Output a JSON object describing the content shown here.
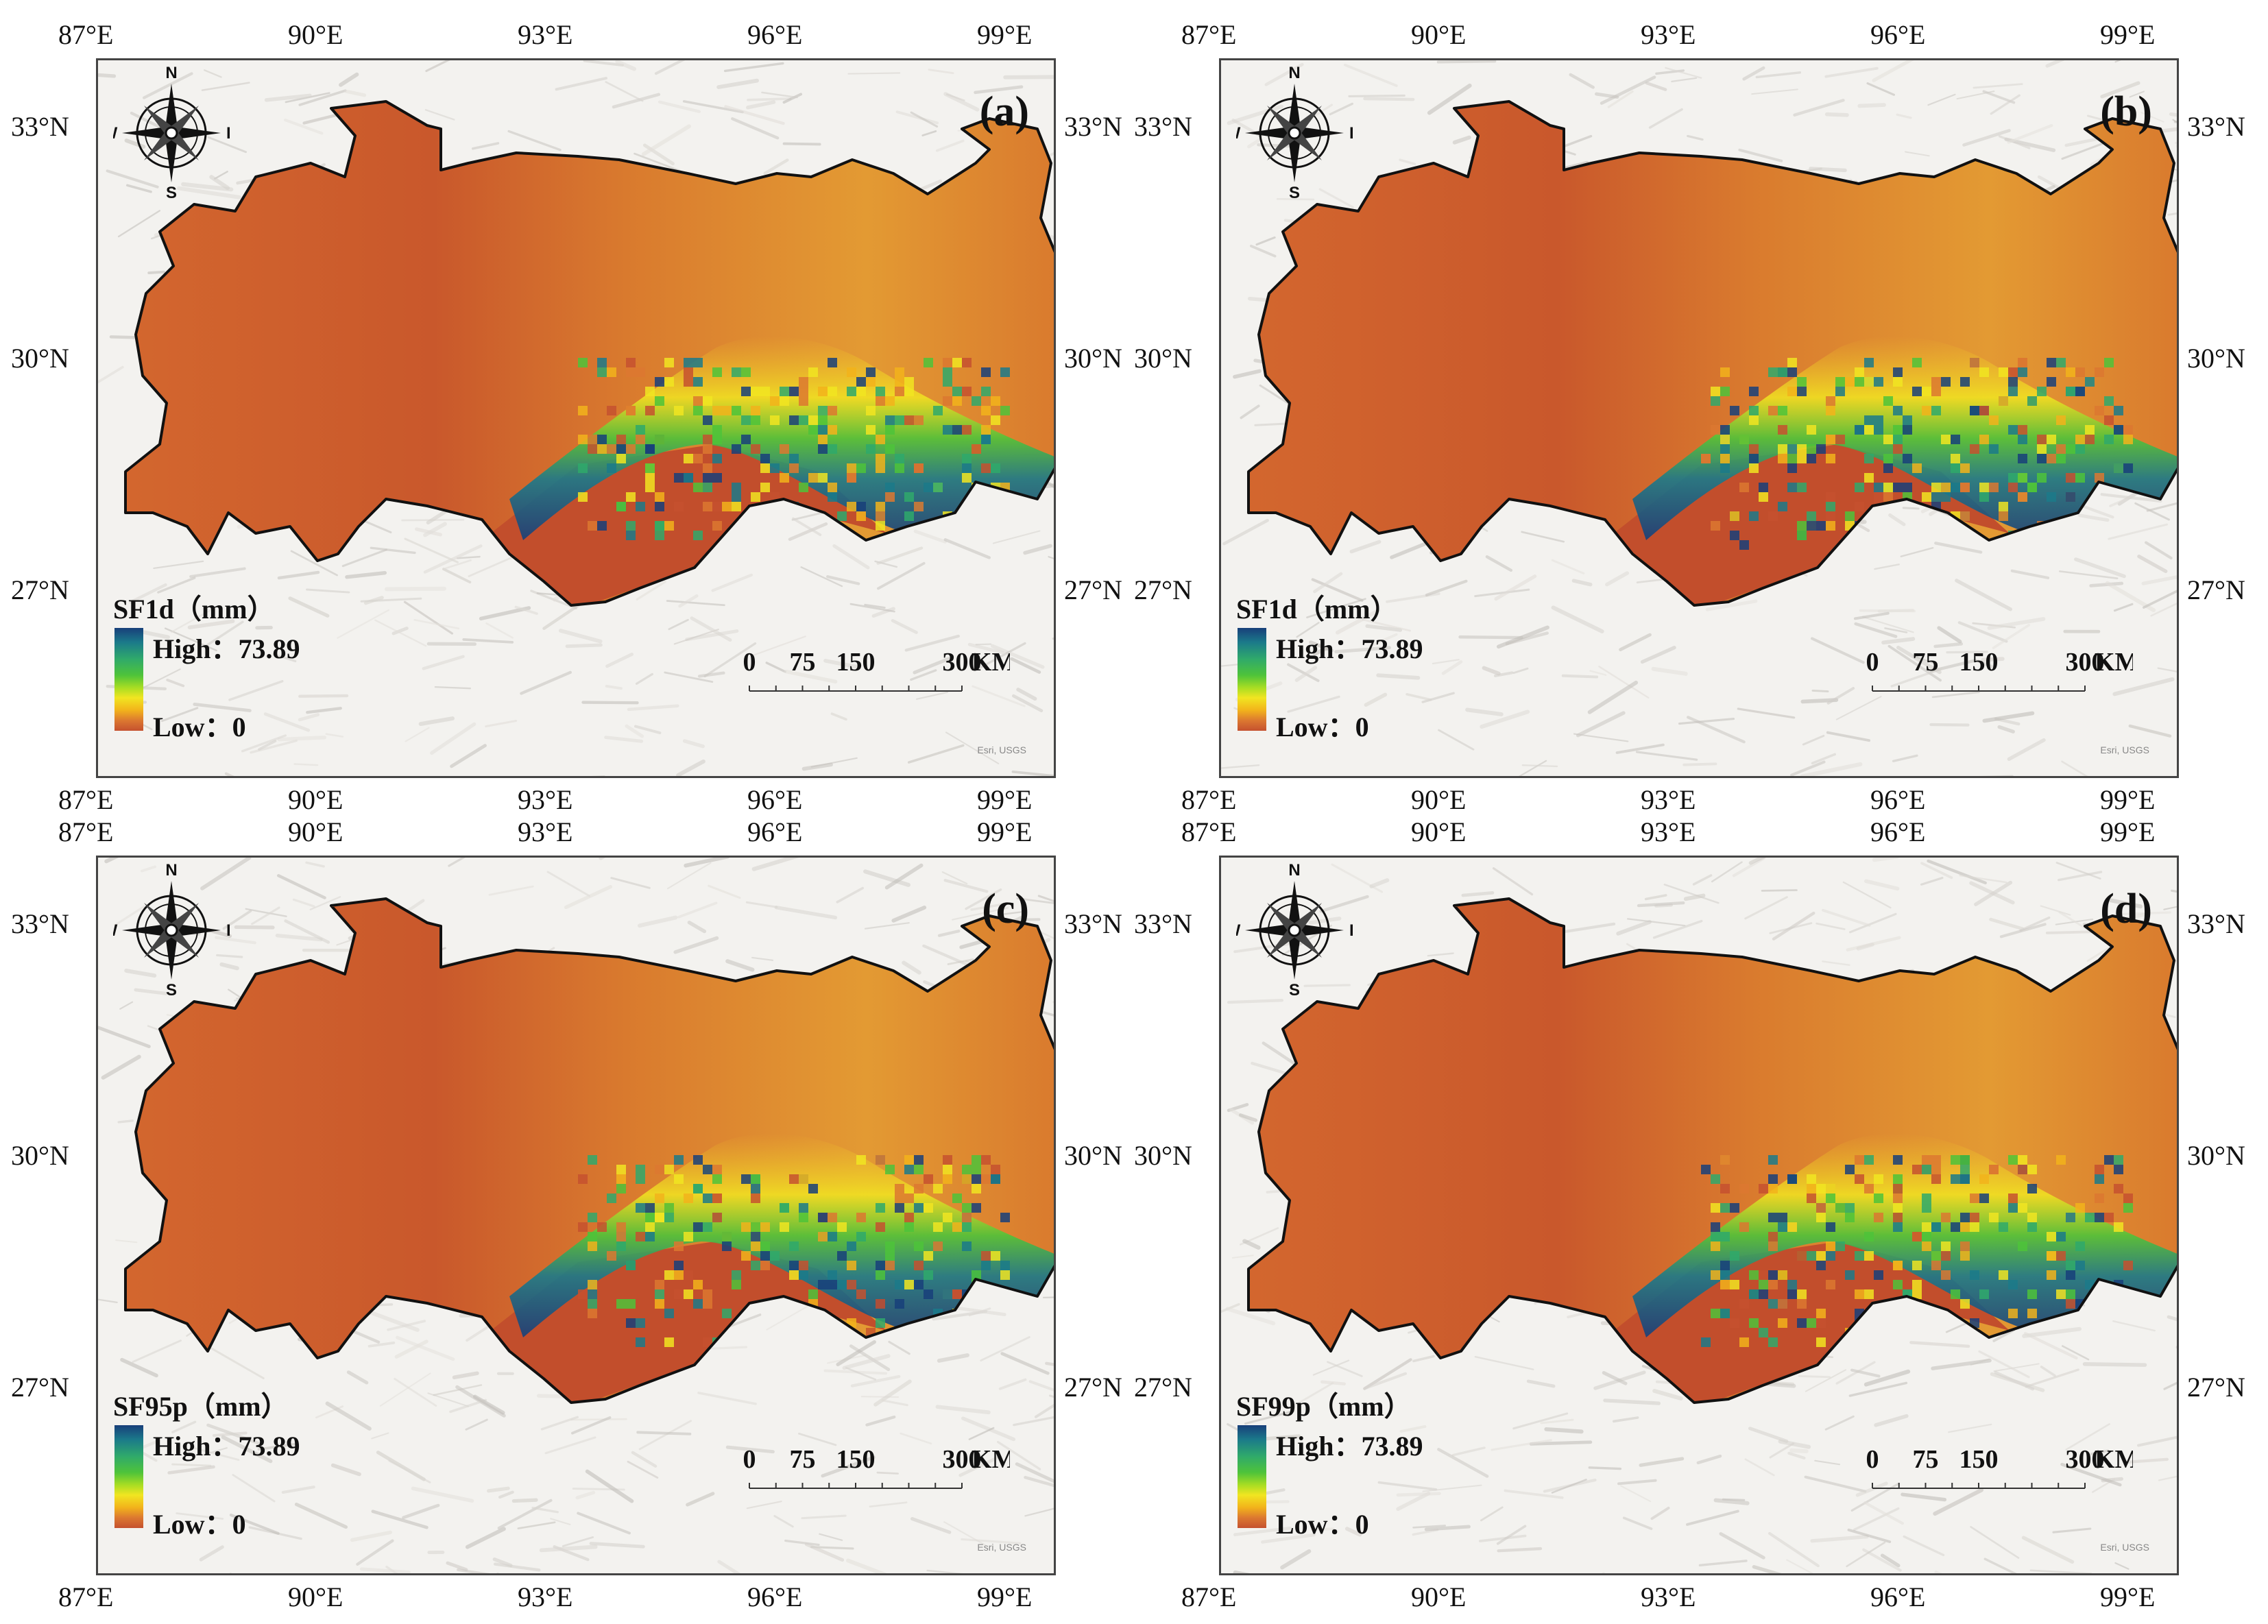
{
  "x_ticks": [
    "87°E",
    "90°E",
    "93°E",
    "96°E",
    "99°E"
  ],
  "y_ticks": [
    "33°N",
    "30°N",
    "27°N"
  ],
  "compass": {
    "n": "N",
    "s": "S",
    "e": "E",
    "w": "W"
  },
  "scalebar": {
    "labels": [
      "0",
      "75",
      "150",
      "300"
    ],
    "unit": "KM"
  },
  "attribution": "Esri, USGS",
  "colors": {
    "low": "#c5512f",
    "mid_orange": "#e08b2b",
    "yellow": "#f1e521",
    "green": "#4ec33a",
    "teal": "#1b7a8a",
    "high": "#183f7a",
    "boundary": "#111111",
    "hillshade": "#f3f2ef"
  },
  "panels": [
    {
      "label": "(a)",
      "legend_title": "SF1d（mm）",
      "high_label": "High：73.89",
      "low_label": "Low：0",
      "high_value": 73.89,
      "low_value": 0
    },
    {
      "label": "(b)",
      "legend_title": "SF1d（mm）",
      "high_label": "High：73.89",
      "low_label": "Low：0",
      "high_value": 73.89,
      "low_value": 0
    },
    {
      "label": "(c)",
      "legend_title": "SF95p（mm）",
      "high_label": "High：73.89",
      "low_label": "Low：0",
      "high_value": 73.89,
      "low_value": 0
    },
    {
      "label": "(d)",
      "legend_title": "SF99p（mm）",
      "high_label": "High：73.89",
      "low_label": "Low：0",
      "high_value": 73.89,
      "low_value": 0
    }
  ]
}
